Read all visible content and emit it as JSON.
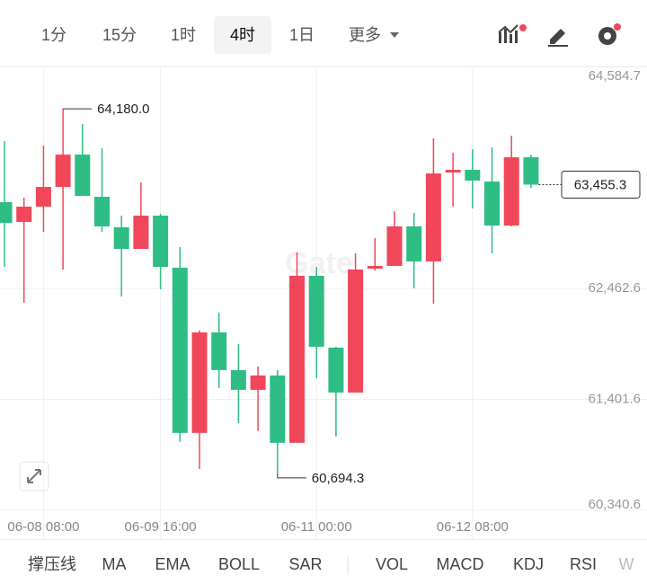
{
  "tabs": {
    "items": [
      "1分",
      "15分",
      "1时",
      "4时",
      "1日",
      "更多"
    ],
    "selected": 3
  },
  "indicators": [
    "撑压线",
    "MA",
    "EMA",
    "BOLL",
    "SAR",
    "VOL",
    "MACD",
    "KDJ",
    "RSI",
    "W"
  ],
  "chart_data": {
    "type": "candlestick",
    "watermark": "Gate",
    "up_color": "#f0475b",
    "down_color": "#2ebd85",
    "categories": [
      null,
      null,
      "06-08 08:00",
      null,
      null,
      null,
      null,
      null,
      "06-09 16:00",
      null,
      null,
      null,
      null,
      null,
      null,
      null,
      "06-11 00:00",
      null,
      null,
      null,
      null,
      null,
      null,
      null,
      "06-12 08:00",
      null,
      null,
      null
    ],
    "open": [
      63287.2,
      63098.3,
      63244.2,
      63433.1,
      63742.2,
      63338.7,
      63046.8,
      62840.7,
      63158.4,
      62660.5,
      61080.8,
      62042.3,
      61681.8,
      61492.9,
      61630.3,
      60986.4,
      62583.2,
      61896.4,
      61467.1,
      62651.9,
      62677.6,
      63055.4,
      62720.5,
      63570.5,
      63596.2,
      63484.6,
      63063.9,
      63716.4
    ],
    "high": [
      63870.9,
      63330.1,
      63828.0,
      64180.0,
      64034.1,
      63802.3,
      63158.4,
      63476.0,
      63175.6,
      62857.9,
      62059.5,
      62231.2,
      61930.7,
      61716.1,
      61681.8,
      62806.4,
      62669.0,
      61905.0,
      62797.8,
      62943.8,
      63201.3,
      63184.1,
      63896.7,
      63759.3,
      63793.7,
      63810.8,
      63922.4,
      63742.2
    ],
    "low": [
      62669.0,
      62325.6,
      63003.9,
      62643.3,
      63347.3,
      63003.9,
      62385.7,
      62840.7,
      62454.4,
      60995.0,
      60737.4,
      61510.1,
      61175.2,
      61098.0,
      60694.3,
      60986.4,
      61604.5,
      61046.5,
      61467.1,
      62634.7,
      62677.6,
      62463.0,
      62317.1,
      63244.2,
      63227.1,
      62797.8,
      63055.4,
      63424.5
    ],
    "close": [
      63089.7,
      63244.2,
      63433.1,
      63742.2,
      63347.3,
      63055.4,
      62840.7,
      63158.4,
      62669.0,
      61080.8,
      62042.3,
      61681.8,
      61492.9,
      61630.3,
      60986.4,
      62583.2,
      61905.0,
      61467.1,
      62643.3,
      62677.6,
      63055.4,
      62720.5,
      63561.9,
      63596.2,
      63493.2,
      63063.9,
      63716.4,
      63455.3
    ],
    "ylim": [
      60340.6,
      64584.7
    ],
    "yticks": [
      {
        "value": 64584.7,
        "label": "64,584.7"
      },
      {
        "value": 62462.6,
        "label": "62,462.6"
      },
      {
        "value": 61401.6,
        "label": "61,401.6"
      },
      {
        "value": 60340.6,
        "label": "60,340.6"
      }
    ],
    "annotations": [
      {
        "value": 64180.0,
        "label": "64,180.0"
      },
      {
        "value": 60694.3,
        "label": "60,694.3"
      }
    ],
    "last_price": {
      "value": 63455.3,
      "label": "63,455.3"
    },
    "grid": true
  }
}
